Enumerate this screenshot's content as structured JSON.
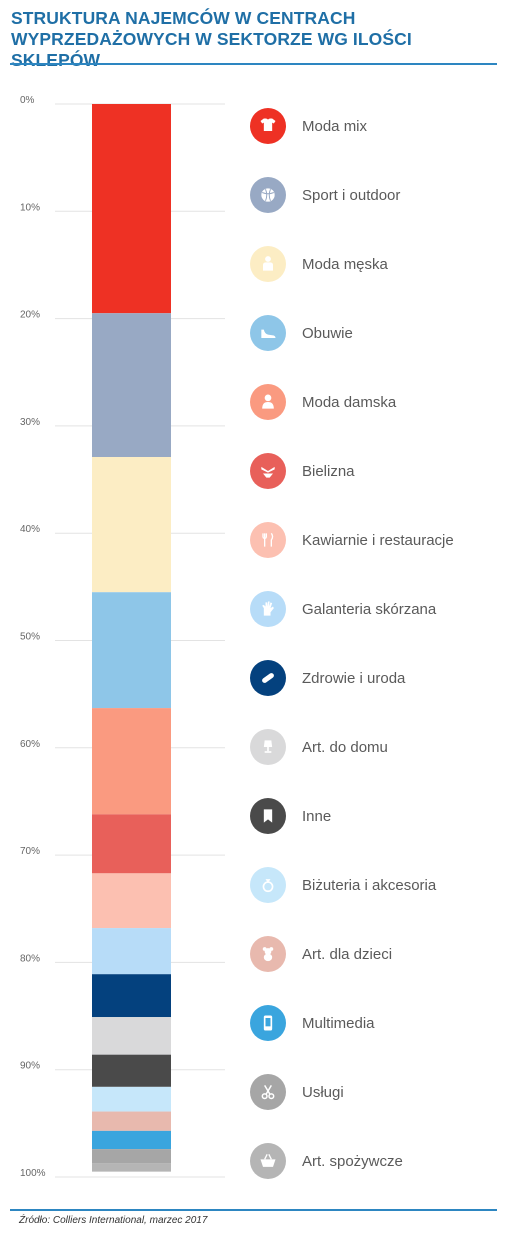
{
  "title_lines": [
    "STRUKTURA NAJEMCÓW W CENTRACH",
    "WYPRZEDAŻOWYCH W SEKTORZE WG ILOŚCI SKLEPÓW"
  ],
  "source": "Źródło: Colliers International, marzec 2017",
  "chart_data": {
    "type": "bar",
    "stacked": true,
    "orientation": "vertical",
    "title": "STRUKTURA NAJEMCÓW W CENTRACH WYPRZEDAŻOWYCH W SEKTORZE WG ILOŚCI SKLEPÓW",
    "ylim": [
      0,
      100
    ],
    "y_ticks": [
      "0%",
      "10%",
      "20%",
      "30%",
      "40%",
      "50%",
      "60%",
      "70%",
      "80%",
      "90%",
      "100%"
    ],
    "grid": true,
    "legend_position": "right",
    "series": [
      {
        "name": "Moda mix",
        "value": 19.5,
        "color": "#ee3124",
        "icon": "tshirt-icon"
      },
      {
        "name": "Sport i outdoor",
        "value": 13.4,
        "color": "#98a9c4",
        "icon": "ball-icon"
      },
      {
        "name": "Moda męska",
        "value": 12.6,
        "color": "#fcedc4",
        "icon": "man-icon"
      },
      {
        "name": "Obuwie",
        "value": 10.8,
        "color": "#8ec6e8",
        "icon": "shoe-icon"
      },
      {
        "name": "Moda damska",
        "value": 9.9,
        "color": "#fa9a80",
        "icon": "woman-icon"
      },
      {
        "name": "Bielizna",
        "value": 5.5,
        "color": "#e8605a",
        "icon": "lingerie-icon"
      },
      {
        "name": "Kawiarnie i restauracje",
        "value": 5.1,
        "color": "#fcc0b1",
        "icon": "cutlery-icon"
      },
      {
        "name": "Galanteria skórzana",
        "value": 4.3,
        "color": "#b7dcf8",
        "icon": "glove-icon"
      },
      {
        "name": "Zdrowie i uroda",
        "value": 4.0,
        "color": "#04417e",
        "icon": "pill-icon"
      },
      {
        "name": "Art. do domu",
        "value": 3.5,
        "color": "#d9d9da",
        "icon": "lamp-icon"
      },
      {
        "name": "Inne",
        "value": 3.0,
        "color": "#4a4a4a",
        "icon": "bookmark-icon"
      },
      {
        "name": "Biżuteria i akcesoria",
        "value": 2.3,
        "color": "#c6e7fa",
        "icon": "ring-icon"
      },
      {
        "name": "Art. dla dzieci",
        "value": 1.8,
        "color": "#e8b9ae",
        "icon": "teddy-icon"
      },
      {
        "name": "Multimedia",
        "value": 1.7,
        "color": "#3aa5de",
        "icon": "phone-icon"
      },
      {
        "name": "Usługi",
        "value": 1.3,
        "color": "#a6a6a6",
        "icon": "scissors-icon"
      },
      {
        "name": "Art. spożywcze",
        "value": 0.8,
        "color": "#b5b5b5",
        "icon": "basket-icon"
      }
    ]
  }
}
